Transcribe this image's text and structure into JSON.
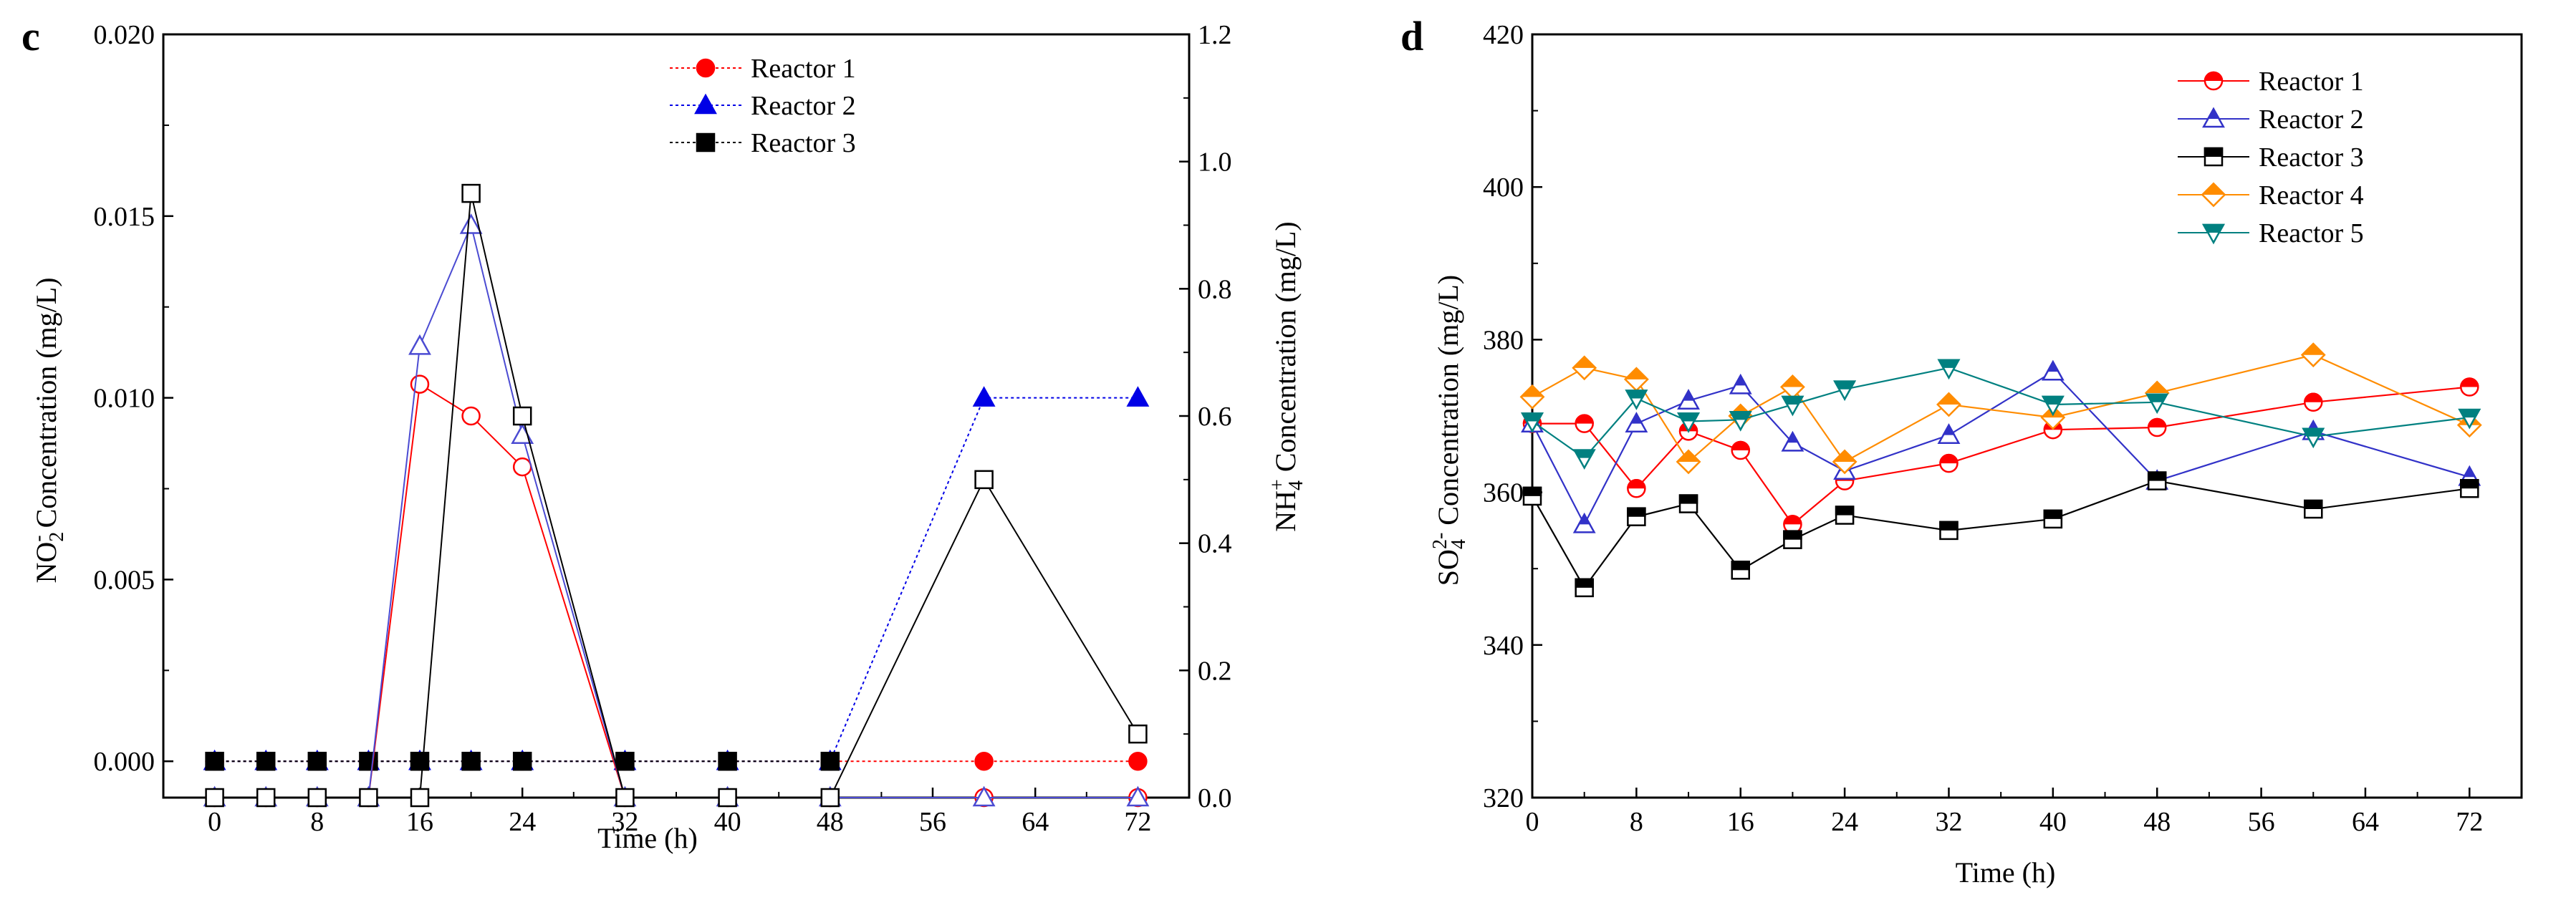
{
  "chart_data": [
    {
      "panel_label": "c",
      "type": "line",
      "xlabel": "Time (h)",
      "ylabel": "NO2- Concentration (mg/L)",
      "ylabel_parts": {
        "main": "NO",
        "sub": "2",
        "sup": "-",
        "rest": " Concentration (mg/L)"
      },
      "y2label": "NH4+ Concentration (mg/L)",
      "y2label_parts": {
        "main": "NH",
        "sub": "4",
        "sup": "+",
        "rest": " Concentration (mg/L)"
      },
      "xlim": [
        -4,
        76
      ],
      "xticks": [
        0,
        8,
        16,
        24,
        32,
        40,
        48,
        56,
        64,
        72
      ],
      "xminor": [
        4,
        12,
        20,
        28,
        36,
        44,
        52,
        60,
        68
      ],
      "ylim": [
        -0.001,
        0.02
      ],
      "yticks": [
        0.0,
        0.005,
        0.01,
        0.015,
        0.02
      ],
      "ytick_labels": [
        "0.000",
        "0.005",
        "0.010",
        "0.015",
        "0.020"
      ],
      "y2lim": [
        0,
        1.2
      ],
      "y2ticks": [
        0.0,
        0.2,
        0.4,
        0.6,
        0.8,
        1.0,
        1.2
      ],
      "y2tick_labels": [
        "0.0",
        "0.2",
        "0.4",
        "0.6",
        "0.8",
        "1.0",
        "1.2"
      ],
      "legend": {
        "placement": "top-center",
        "entries": [
          "Reactor 1",
          "Reactor 2",
          "Reactor 3"
        ]
      },
      "series": [
        {
          "name": "Reactor 1",
          "marker": "circle",
          "filled": true,
          "color": "#ff0000",
          "dash": "4,4",
          "axis": "left",
          "x": [
            0,
            4,
            8,
            12,
            16,
            20,
            24,
            32,
            40,
            48,
            60,
            72
          ],
          "y": [
            0,
            0,
            0,
            0,
            0,
            0,
            0,
            0,
            0,
            0,
            0,
            0
          ]
        },
        {
          "name": "Reactor 2",
          "marker": "triangle",
          "filled": true,
          "color": "#0000e6",
          "dash": "4,4",
          "axis": "left",
          "x": [
            0,
            4,
            8,
            12,
            16,
            20,
            24,
            32,
            40,
            48,
            60,
            72
          ],
          "y": [
            0,
            0,
            0,
            0,
            0,
            0,
            0,
            0,
            0,
            0,
            0.01,
            0.01
          ]
        },
        {
          "name": "Reactor 3",
          "marker": "square",
          "filled": true,
          "color": "#000000",
          "dash": "4,4",
          "axis": "left",
          "x": [
            0,
            4,
            8,
            12,
            16,
            20,
            24,
            32,
            40,
            48
          ],
          "y": [
            0,
            0,
            0,
            0,
            0,
            0,
            0,
            0,
            0,
            0
          ]
        },
        {
          "name": "Reactor 1 NH4+",
          "marker": "circle",
          "filled": false,
          "color": "#ff0000",
          "dash": "",
          "axis": "right",
          "x": [
            0,
            4,
            8,
            12,
            16,
            20,
            24,
            32,
            40,
            48,
            60,
            72
          ],
          "y": [
            0,
            0,
            0,
            0,
            0.65,
            0.6,
            0.52,
            0,
            0,
            0,
            0,
            0
          ]
        },
        {
          "name": "Reactor 2 NH4+",
          "marker": "triangle",
          "filled": false,
          "color": "#4b4bd2",
          "dash": "",
          "axis": "right",
          "x": [
            0,
            4,
            8,
            12,
            16,
            20,
            24,
            32,
            40,
            48,
            60,
            72
          ],
          "y": [
            0,
            0,
            0,
            0,
            0.71,
            0.9,
            0.57,
            0,
            0,
            0,
            0,
            0
          ]
        },
        {
          "name": "Reactor 3 NH4+",
          "marker": "square",
          "filled": false,
          "color": "#000000",
          "dash": "",
          "axis": "right",
          "x": [
            0,
            4,
            8,
            12,
            16,
            20,
            24,
            32,
            40,
            48,
            60,
            72
          ],
          "y": [
            0,
            0,
            0,
            0,
            0,
            0.95,
            0.6,
            0,
            0,
            0,
            0.5,
            0.1
          ]
        }
      ]
    },
    {
      "panel_label": "d",
      "type": "line",
      "xlabel": "Time (h)",
      "ylabel": "SO42- Concentration (mg/L)",
      "ylabel_parts": {
        "main": "SO",
        "sub": "4",
        "sup": "2-",
        "rest": " Concentration (mg/L)"
      },
      "xlim": [
        0,
        76
      ],
      "xticks": [
        0,
        8,
        16,
        24,
        32,
        40,
        48,
        56,
        64,
        72
      ],
      "xminor": [
        4,
        12,
        20,
        28,
        36,
        44,
        52,
        60,
        68
      ],
      "ylim": [
        320,
        420
      ],
      "yticks": [
        320,
        340,
        360,
        380,
        400,
        420
      ],
      "ytick_labels": [
        "320",
        "340",
        "360",
        "380",
        "400",
        "420"
      ],
      "legend": {
        "placement": "top-right",
        "entries": [
          "Reactor 1",
          "Reactor 2",
          "Reactor 3",
          "Reactor 4",
          "Reactor 5"
        ]
      },
      "series": [
        {
          "name": "Reactor 1",
          "marker": "circle",
          "color": "#ff0000",
          "x": [
            0,
            4,
            8,
            12,
            16,
            20,
            24,
            32,
            40,
            48,
            60,
            72
          ],
          "y": [
            369,
            369,
            360.5,
            368,
            365.5,
            355.8,
            361.5,
            363.8,
            368.2,
            368.5,
            371.8,
            373.8
          ]
        },
        {
          "name": "Reactor 2",
          "marker": "triangle",
          "color": "#3232c8",
          "x": [
            0,
            4,
            8,
            12,
            16,
            20,
            24,
            32,
            40,
            48,
            60,
            72
          ],
          "y": [
            369,
            355.8,
            369,
            372,
            374,
            366.5,
            362.8,
            367.5,
            375.8,
            361.5,
            368,
            362
          ]
        },
        {
          "name": "Reactor 3",
          "marker": "square",
          "color": "#000000",
          "x": [
            0,
            4,
            8,
            12,
            16,
            20,
            24,
            32,
            40,
            48,
            60,
            72
          ],
          "y": [
            359.5,
            347.5,
            356.8,
            358.5,
            349.8,
            353.8,
            357,
            355,
            356.5,
            361.5,
            357.8,
            360.5
          ]
        },
        {
          "name": "Reactor 4",
          "marker": "diamond",
          "color": "#ff8c00",
          "x": [
            0,
            4,
            8,
            12,
            16,
            20,
            24,
            32,
            40,
            48,
            60,
            72
          ],
          "y": [
            372.5,
            376.3,
            374.8,
            364,
            370,
            373.8,
            364,
            371.5,
            369.8,
            373,
            378,
            368.8
          ]
        },
        {
          "name": "Reactor 5",
          "marker": "invtriangle",
          "color": "#008080",
          "x": [
            0,
            4,
            8,
            12,
            16,
            20,
            24,
            32,
            40,
            48,
            60,
            72
          ],
          "y": [
            369.3,
            364.5,
            372.3,
            369.3,
            369.5,
            371.5,
            373.5,
            376.3,
            371.5,
            371.8,
            367.3,
            369.8
          ]
        }
      ]
    }
  ]
}
